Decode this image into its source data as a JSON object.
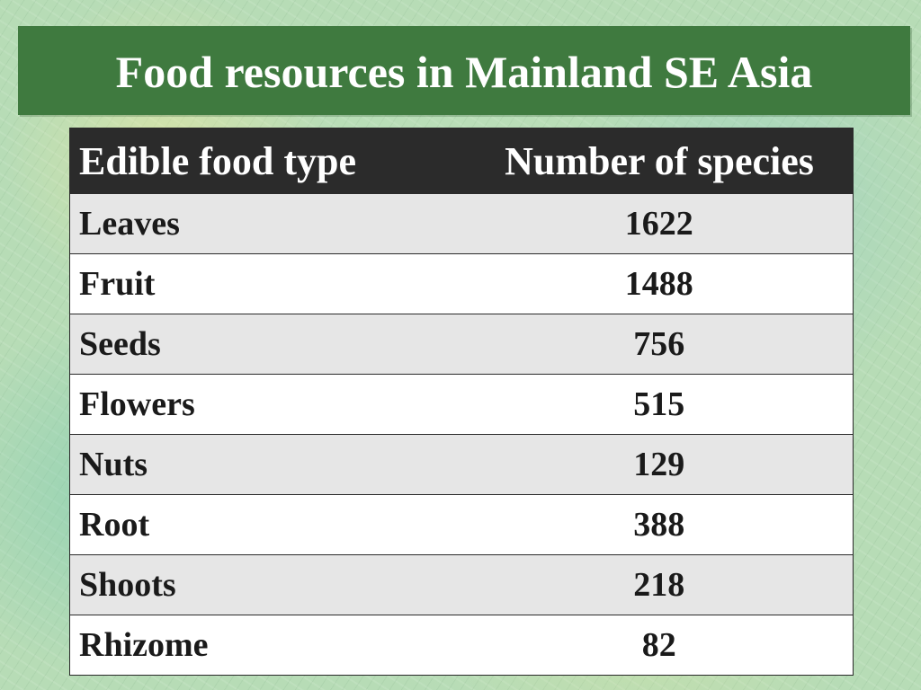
{
  "slide": {
    "title": "Food resources in Mainland SE Asia"
  },
  "table": {
    "headers": {
      "type": "Edible food type",
      "count": "Number of species"
    },
    "rows": [
      {
        "type": "Leaves",
        "count": "1622"
      },
      {
        "type": "Fruit",
        "count": "1488"
      },
      {
        "type": "Seeds",
        "count": "756"
      },
      {
        "type": "Flowers",
        "count": "515"
      },
      {
        "type": "Nuts",
        "count": "129"
      },
      {
        "type": "Root",
        "count": "388"
      },
      {
        "type": "Shoots",
        "count": "218"
      },
      {
        "type": "Rhizome",
        "count": "82"
      }
    ]
  },
  "colors": {
    "title_bar": "#3f7a3f",
    "header_row": "#2b2b2b",
    "row_shaded": "#e6e6e6",
    "row_plain": "#ffffff",
    "background": "#b7dcb6"
  }
}
